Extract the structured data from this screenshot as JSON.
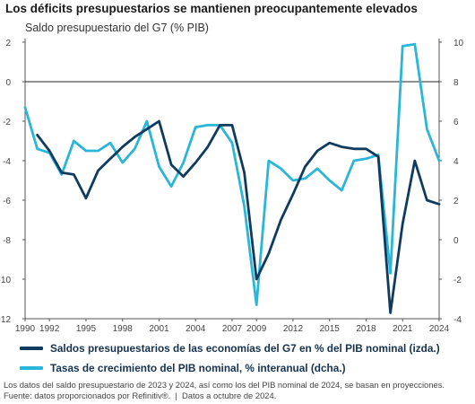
{
  "header": {
    "title": "Los déficits presupuestarios se mantienen preocupantemente elevados",
    "subtitle": "Saldo presupuestario del G7 (% PIB)"
  },
  "chart_data": {
    "type": "line",
    "x_tick_labels": [
      "1990",
      "1992",
      "1995",
      "1998",
      "2001",
      "2004",
      "2007",
      "2009",
      "2012",
      "2015",
      "2018",
      "2021",
      "2024"
    ],
    "x_tick_years": [
      1990,
      1992,
      1995,
      1998,
      2001,
      2004,
      2007,
      2009,
      2012,
      2015,
      2018,
      2021,
      2024
    ],
    "xlim": [
      1990,
      2024
    ],
    "y_left": {
      "ylim": [
        -12,
        2
      ],
      "ticks": [
        2,
        0,
        -2,
        -4,
        -6,
        -8,
        -10,
        -12
      ],
      "labels": [
        "2",
        "0",
        "-2",
        "-4",
        "-6",
        "-8",
        "-10",
        "-12"
      ]
    },
    "y_right": {
      "ylim": [
        -4,
        10
      ],
      "ticks": [
        10,
        8,
        6,
        4,
        2,
        0,
        -2,
        -4
      ],
      "labels": [
        "10",
        "8",
        "6",
        "4",
        "2",
        "0",
        "-2",
        "-4"
      ]
    },
    "zero_line_left": 0,
    "grid": false,
    "legend_position": "bottom",
    "series": [
      {
        "name": "Saldos presupuestarios de las economías del G7 en % del PIB nominal (izda.)",
        "axis": "left",
        "color": "#0f3b5f",
        "x": [
          1991,
          1992,
          1993,
          1994,
          1995,
          1996,
          1997,
          1998,
          1999,
          2000,
          2001,
          2002,
          2003,
          2004,
          2005,
          2006,
          2007,
          2008,
          2009,
          2010,
          2011,
          2012,
          2013,
          2014,
          2015,
          2016,
          2017,
          2018,
          2019,
          2020,
          2021,
          2022,
          2023,
          2024
        ],
        "values": [
          -2.7,
          -3.5,
          -4.6,
          -4.7,
          -5.9,
          -4.5,
          -3.9,
          -3.3,
          -2.8,
          -2.4,
          -2.0,
          -4.2,
          -4.8,
          -4.1,
          -3.3,
          -2.2,
          -2.2,
          -4.6,
          -10.0,
          -8.7,
          -7.0,
          -5.7,
          -4.3,
          -3.5,
          -3.1,
          -3.3,
          -3.4,
          -3.4,
          -3.8,
          -11.7,
          -7.2,
          -4.0,
          -6.0,
          -6.2
        ]
      },
      {
        "name": "Tasas de crecimiento del PIB nominal, % interanual (dcha.)",
        "axis": "right",
        "color": "#29b6d8",
        "x": [
          1990,
          1991,
          1992,
          1993,
          1994,
          1995,
          1996,
          1997,
          1998,
          1999,
          2000,
          2001,
          2002,
          2003,
          2004,
          2005,
          2006,
          2007,
          2008,
          2009,
          2010,
          2011,
          2012,
          2013,
          2014,
          2015,
          2016,
          2017,
          2018,
          2019,
          2020,
          2021,
          2022,
          2023,
          2024
        ],
        "values": [
          6.7,
          4.6,
          4.4,
          3.3,
          5.0,
          4.5,
          4.5,
          4.9,
          3.9,
          4.6,
          6.0,
          3.7,
          2.7,
          3.9,
          5.7,
          5.8,
          5.8,
          4.9,
          1.7,
          -3.3,
          4.0,
          3.6,
          3.0,
          3.1,
          3.6,
          3.0,
          2.5,
          4.0,
          4.1,
          4.3,
          -1.7,
          9.8,
          9.9,
          5.6,
          4.0
        ]
      }
    ]
  },
  "footnote": {
    "line1": "Los datos del saldo presupuestario de 2023 y 2024, así como los del PIB nominal de 2024, se basan en proyecciones.",
    "line2": "Fuente: datos proporcionados por Refinitiv®.  |  Datos a octubre de 2024."
  }
}
